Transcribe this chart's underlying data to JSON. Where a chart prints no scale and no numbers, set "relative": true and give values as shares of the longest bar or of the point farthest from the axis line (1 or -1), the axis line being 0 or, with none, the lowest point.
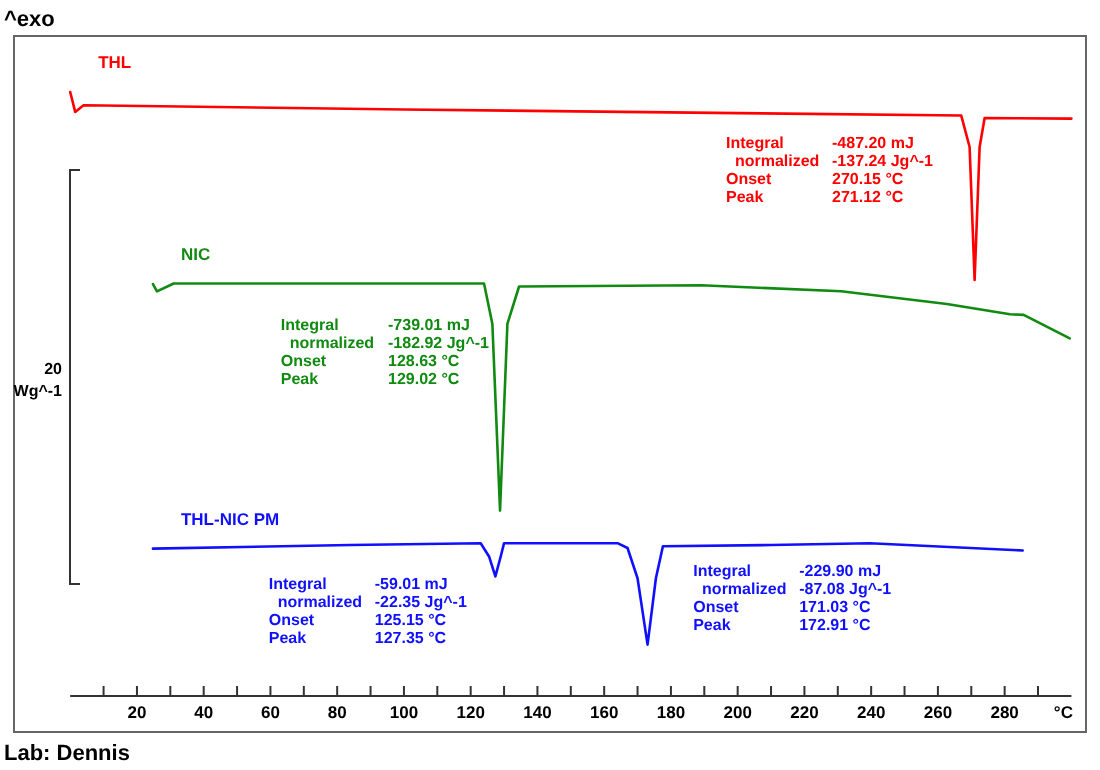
{
  "chart_data": {
    "type": "line",
    "relative": true,
    "xlabel": "°C",
    "ylabel": "20 Wg^-1",
    "xlim": [
      0,
      300
    ],
    "xticks": [
      {
        "value": 10,
        "label": null
      },
      20,
      {
        "value": 30,
        "label": null
      },
      40,
      {
        "value": 50,
        "label": null
      },
      60,
      {
        "value": 70,
        "label": null
      },
      80,
      {
        "value": 90,
        "label": null
      },
      100,
      {
        "value": 110,
        "label": null
      },
      120,
      {
        "value": 130,
        "label": null
      },
      140,
      {
        "value": 150,
        "label": null
      },
      160,
      {
        "value": 170,
        "label": null
      },
      180,
      {
        "value": 190,
        "label": null
      },
      200,
      {
        "value": 210,
        "label": null
      },
      220,
      {
        "value": 230,
        "label": null
      },
      240,
      {
        "value": 250,
        "label": null
      },
      260,
      {
        "value": 270,
        "label": null
      },
      280,
      {
        "value": 290,
        "label": null
      }
    ],
    "marker": "none",
    "line_style": "solid",
    "series": [
      {
        "name": "THL",
        "color": "#ff0000",
        "x": [
          0,
          1.5,
          4,
          100,
          200,
          267,
          269.5,
          271,
          272.5,
          274,
          300
        ],
        "values": [
          1.0,
          0.967,
          0.978,
          0.971,
          0.965,
          0.961,
          0.909,
          0.689,
          0.909,
          0.957,
          0.956
        ]
      },
      {
        "name": "NIC",
        "color": "#108a10",
        "x": [
          24.8,
          26,
          31,
          124,
          126.5,
          128.8,
          131,
          134.5,
          189,
          231,
          262.7,
          281.6,
          285.7,
          299.5
        ],
        "values": [
          0.682,
          0.67,
          0.683,
          0.683,
          0.616,
          0.307,
          0.616,
          0.678,
          0.68,
          0.67,
          0.649,
          0.632,
          0.631,
          0.592
        ]
      },
      {
        "name": "THL-NIC PM",
        "color": "#1010ff",
        "x": [
          24.8,
          84,
          123,
          125.5,
          127.4,
          129,
          130,
          164,
          167,
          170,
          173,
          175.5,
          177.6,
          210,
          239.6,
          285.4
        ],
        "values": [
          0.244,
          0.25,
          0.253,
          0.231,
          0.198,
          0.231,
          0.253,
          0.253,
          0.245,
          0.195,
          0.085,
          0.195,
          0.248,
          0.25,
          0.253,
          0.241
        ]
      }
    ],
    "annotations": [
      "^exo",
      "Lab: Dennis",
      "Integral\n  normalized\nOnset\nPeak",
      "-487.20 mJ\n-137.24 Jg^-1\n270.15 °C\n271.12 °C",
      "Integral\n  normalized\nOnset\nPeak",
      "-739.01 mJ\n-182.92 Jg^-1\n128.63 °C\n129.02 °C",
      "Integral\n  normalized\nOnset\nPeak",
      "-59.01 mJ\n-22.35 Jg^-1\n125.15 °C\n127.35 °C",
      "Integral\n  normalized\nOnset\nPeak",
      "-229.90 mJ\n-87.08 Jg^-1\n171.03 °C\n172.91 °C"
    ]
  }
}
